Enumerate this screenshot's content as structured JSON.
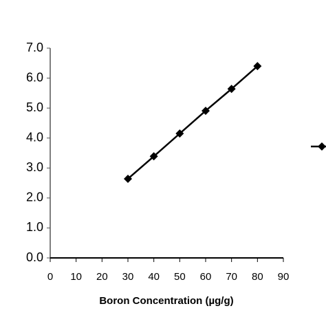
{
  "chart_data": {
    "type": "line",
    "x_label": "Boron Concentration  (µg/g)",
    "series": [
      {
        "color": "#000000",
        "x": [
          30,
          40,
          50,
          60,
          70,
          80
        ],
        "values": [
          2.64,
          3.39,
          4.15,
          4.91,
          5.64,
          6.4
        ]
      }
    ],
    "xlim": [
      0,
      90
    ],
    "xticks": [
      0,
      10,
      20,
      30,
      40,
      50,
      60,
      70,
      80,
      90
    ],
    "ylim": [
      0,
      7
    ],
    "yticks": [
      {
        "value": 0,
        "label": "0.0"
      },
      {
        "value": 1,
        "label": "1.0"
      },
      {
        "value": 2,
        "label": "2.0"
      },
      {
        "value": 3,
        "label": "3.0"
      },
      {
        "value": 4,
        "label": "4.0"
      },
      {
        "value": 5,
        "label": "5.0"
      },
      {
        "value": 6,
        "label": "6.0"
      },
      {
        "value": 7,
        "label": "7.0"
      }
    ]
  }
}
